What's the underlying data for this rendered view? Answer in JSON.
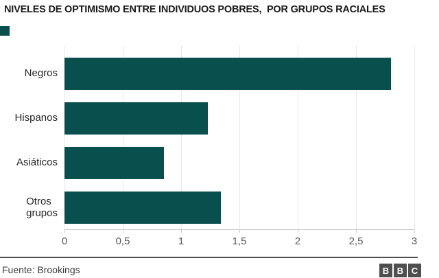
{
  "chart_data": {
    "type": "bar",
    "orientation": "horizontal",
    "title": "NIVELES DE OPTIMISMO ENTRE INDIVIDUOS POBRES,  POR GRUPOS RACIALES",
    "categories": [
      "Negros",
      "Hispanos",
      "Asiáticos",
      "Otros grupos"
    ],
    "category_labels": [
      "Negros",
      "Hispanos",
      "Asiáticos",
      "Otros\ngrupos"
    ],
    "values": [
      2.8,
      1.23,
      0.85,
      1.34
    ],
    "xlim": [
      0,
      3
    ],
    "x_ticks": [
      "0",
      "0,5",
      "1",
      "1,5",
      "2",
      "2,5",
      "3"
    ],
    "grid": true,
    "legend_position": "top-left",
    "legend_label": ""
  },
  "colors": {
    "bar": "#084f4d",
    "legend_swatch": "#084f4d",
    "gridline": "#e9e9e9",
    "axis_line": "#c8c8c8",
    "tick_label": "#595959",
    "category_label": "#262626",
    "title": "#1a1a1a",
    "footer_rule": "#4d4d4d",
    "footer_text": "#3b3b3b",
    "bbc_square": "#4f4f4f"
  },
  "footer": {
    "source": "Fuente: Brookings",
    "bbc_letters": [
      "B",
      "B",
      "C"
    ]
  }
}
